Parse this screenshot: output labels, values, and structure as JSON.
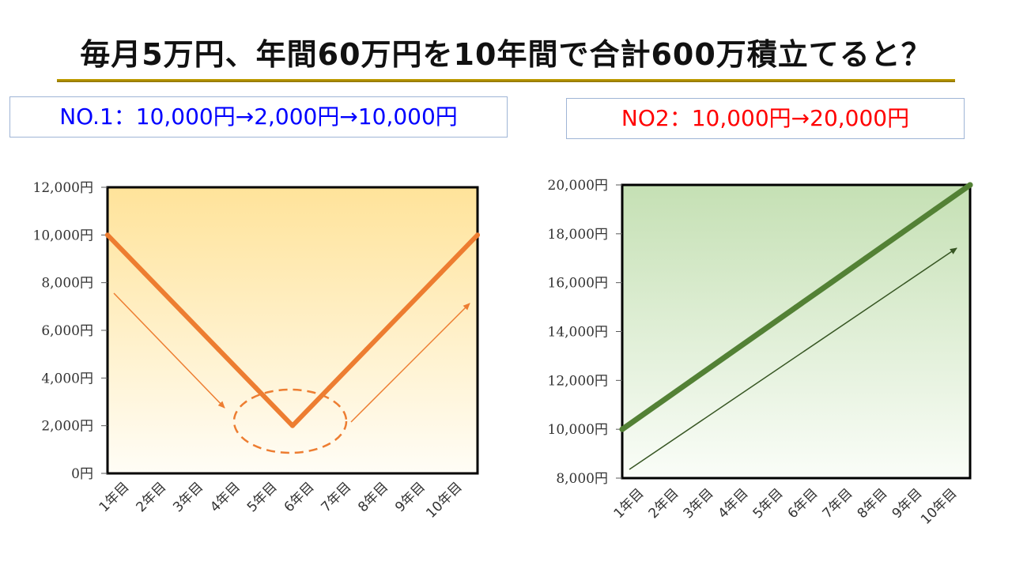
{
  "title": "毎月5万円、年間60万円を10年間で合計600万積立てると？",
  "label_1": "NO.1：10,000円→2,000円→10,000円",
  "label_2": "NO2：10,000円→20,000円",
  "colors": {
    "chart1_line": "#ed7d31",
    "chart1_bg_top": "#ffe39a",
    "chart2_line": "#538135",
    "chart2_bg_top": "#c5e0b4",
    "title_rule": "#b8960a",
    "label_1_text": "#0000ff",
    "label_2_text": "#ff0000"
  },
  "chart_data": [
    {
      "type": "line",
      "title": "",
      "categories": [
        "1年目",
        "2年目",
        "3年目",
        "4年目",
        "5年目",
        "6年目",
        "7年目",
        "8年目",
        "9年目",
        "10年目",
        ""
      ],
      "y_ticks": [
        "0円",
        "2,000円",
        "4,000円",
        "6,000円",
        "8,000円",
        "10,000円",
        "12,000円"
      ],
      "ylim": [
        0,
        12000
      ],
      "series": [
        {
          "values": [
            10000,
            8400,
            6800,
            5200,
            3600,
            2000,
            3600,
            5200,
            6800,
            8400,
            10000
          ]
        }
      ],
      "annotations": [
        "down-arrow",
        "dashed-ellipse-at-minimum",
        "up-arrow"
      ],
      "grid": false
    },
    {
      "type": "line",
      "title": "",
      "categories": [
        "1年目",
        "2年目",
        "3年目",
        "4年目",
        "5年目",
        "6年目",
        "7年目",
        "8年目",
        "9年目",
        "10年目",
        ""
      ],
      "y_ticks": [
        "8,000円",
        "10,000円",
        "12,000円",
        "14,000円",
        "16,000円",
        "18,000円",
        "20,000円"
      ],
      "ylim": [
        8000,
        20000
      ],
      "series": [
        {
          "values": [
            10000,
            11000,
            12000,
            13000,
            14000,
            15000,
            16000,
            17000,
            18000,
            19000,
            20000
          ]
        }
      ],
      "annotations": [
        "up-arrow"
      ],
      "grid": false
    }
  ]
}
